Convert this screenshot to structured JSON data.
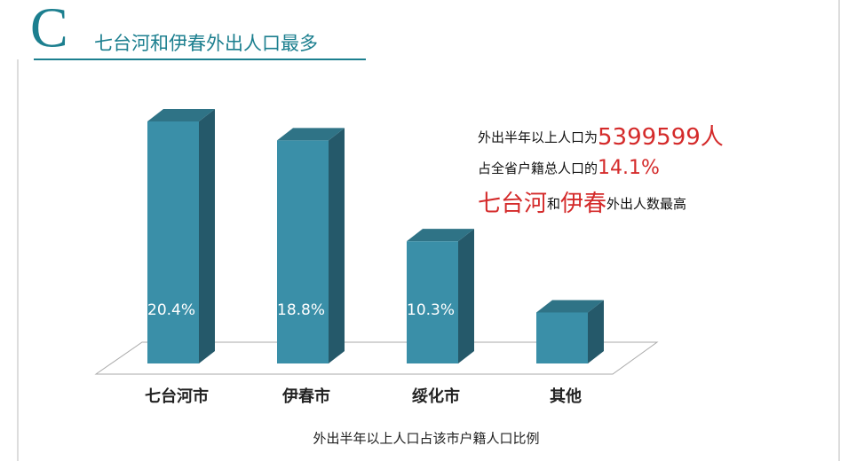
{
  "header": {
    "letter": "C",
    "title": "七台河和伊春外出人口最多"
  },
  "chart_data": {
    "type": "bar",
    "categories": [
      "七台河市",
      "伊春市",
      "绥化市",
      "其他"
    ],
    "values": [
      20.4,
      18.8,
      10.3,
      4.3
    ],
    "value_labels": [
      "20.4%",
      "18.8%",
      "10.3%",
      null
    ],
    "color": "#3a8fa8",
    "x_label": "外出半年以上人口占该市户籍人口比例",
    "annotations": [
      [
        {
          "text": "外出半年以上人口为",
          "emphasis": false
        },
        {
          "text": "5399599人",
          "emphasis": true
        }
      ],
      [
        {
          "text": "占全省户籍总人口的",
          "emphasis": false
        },
        {
          "text": "14.1%",
          "emphasis": true
        }
      ],
      [
        {
          "text": "七台河",
          "emphasis": true
        },
        {
          "text": "和",
          "emphasis": false
        },
        {
          "text": "伊春",
          "emphasis": true
        },
        {
          "text": "外出人数最高",
          "emphasis": false
        }
      ]
    ]
  }
}
